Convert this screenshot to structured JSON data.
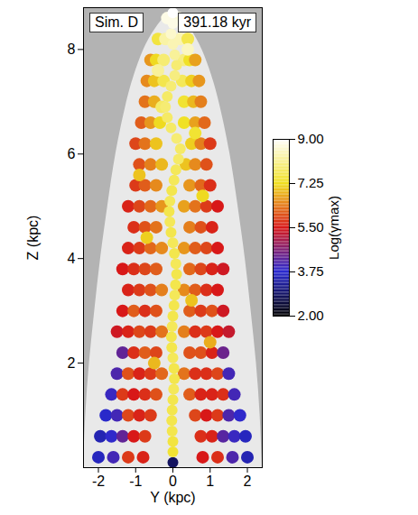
{
  "chart_data": {
    "type": "scatter",
    "annotations": [
      "Sim. D",
      "391.18 kyr"
    ],
    "x_label": "Y (kpc)",
    "y_label": "Z (kpc)",
    "xlim": [
      -2.4,
      2.4
    ],
    "xticks": [
      -2,
      -1,
      0,
      1,
      2
    ],
    "ylim": [
      0,
      8.8
    ],
    "yticks": [
      2,
      4,
      6,
      8
    ],
    "colorbar": {
      "label": "Log(γmax)",
      "range": [
        2,
        9
      ],
      "ticks": [
        {
          "value": 2,
          "label": "2.00"
        },
        {
          "value": 3.75,
          "label": "3.75"
        },
        {
          "value": 5.5,
          "label": "5.50"
        },
        {
          "value": 7.25,
          "label": "7.25"
        },
        {
          "value": 9,
          "label": "9.00"
        }
      ]
    },
    "envelope": {
      "z": [
        0,
        1,
        2,
        3,
        4,
        5,
        6,
        7,
        7.5,
        8,
        8.4,
        8.8
      ],
      "left": [
        -2.4,
        -2.35,
        -2.25,
        -2.1,
        -1.95,
        -1.75,
        -1.55,
        -1.25,
        -1.05,
        -0.8,
        -0.5,
        0
      ],
      "right": [
        2.4,
        2.35,
        2.25,
        2.1,
        1.95,
        1.75,
        1.55,
        1.25,
        1.05,
        0.8,
        0.5,
        0
      ]
    },
    "particles": [
      [
        -2.0,
        0.2,
        3.6
      ],
      [
        -1.6,
        0.2,
        4.0
      ],
      [
        -1.2,
        0.2,
        5.8
      ],
      [
        -0.8,
        0.2,
        5.6
      ],
      [
        0.8,
        0.2,
        5.5
      ],
      [
        1.2,
        0.2,
        5.7
      ],
      [
        1.6,
        0.2,
        4.1
      ],
      [
        2.0,
        0.2,
        3.5
      ],
      [
        -1.95,
        0.6,
        3.5
      ],
      [
        -1.65,
        0.6,
        3.8
      ],
      [
        -1.35,
        0.6,
        4.3
      ],
      [
        -1.05,
        0.6,
        5.5
      ],
      [
        -0.75,
        0.6,
        5.8
      ],
      [
        0.75,
        0.6,
        5.7
      ],
      [
        1.05,
        0.6,
        5.6
      ],
      [
        1.35,
        0.6,
        4.2
      ],
      [
        1.65,
        0.6,
        3.9
      ],
      [
        1.95,
        0.6,
        3.6
      ],
      [
        -1.8,
        1.0,
        3.7
      ],
      [
        -1.5,
        1.0,
        4.0
      ],
      [
        -1.2,
        1.0,
        5.9
      ],
      [
        -0.9,
        1.0,
        5.6
      ],
      [
        -0.6,
        1.0,
        5.8
      ],
      [
        0.6,
        1.0,
        5.9
      ],
      [
        0.9,
        1.0,
        5.5
      ],
      [
        1.2,
        1.0,
        5.8
      ],
      [
        1.5,
        1.0,
        4.1
      ],
      [
        1.8,
        1.0,
        3.8
      ],
      [
        -1.65,
        1.4,
        3.9
      ],
      [
        -1.35,
        1.4,
        5.8
      ],
      [
        -1.05,
        1.4,
        5.5
      ],
      [
        -0.75,
        1.4,
        5.7
      ],
      [
        -0.45,
        1.4,
        6.0
      ],
      [
        0.45,
        1.4,
        6.1
      ],
      [
        0.75,
        1.4,
        5.6
      ],
      [
        1.05,
        1.4,
        5.6
      ],
      [
        1.35,
        1.4,
        5.7
      ],
      [
        1.65,
        1.4,
        4.0
      ],
      [
        -1.5,
        1.8,
        4.1
      ],
      [
        -1.2,
        1.8,
        6.0
      ],
      [
        -0.9,
        1.8,
        5.6
      ],
      [
        -0.6,
        1.8,
        5.8
      ],
      [
        -0.3,
        1.8,
        6.2
      ],
      [
        0.3,
        1.8,
        6.3
      ],
      [
        0.6,
        1.8,
        5.7
      ],
      [
        0.9,
        1.8,
        5.7
      ],
      [
        1.2,
        1.8,
        5.9
      ],
      [
        1.5,
        1.8,
        4.0
      ],
      [
        -1.35,
        2.2,
        4.3
      ],
      [
        -1.05,
        2.2,
        5.7
      ],
      [
        -0.75,
        2.2,
        6.1
      ],
      [
        -0.45,
        2.2,
        5.9
      ],
      [
        0.45,
        2.2,
        6.0
      ],
      [
        0.75,
        2.2,
        6.0
      ],
      [
        1.05,
        2.2,
        5.6
      ],
      [
        1.35,
        2.2,
        4.4
      ],
      [
        -1.5,
        2.6,
        5.4
      ],
      [
        -1.2,
        2.6,
        5.6
      ],
      [
        -0.9,
        2.6,
        5.9
      ],
      [
        -0.6,
        2.6,
        5.8
      ],
      [
        -0.3,
        2.6,
        6.3
      ],
      [
        0.3,
        2.6,
        6.4
      ],
      [
        0.6,
        2.6,
        5.7
      ],
      [
        0.9,
        2.6,
        5.8
      ],
      [
        1.2,
        2.6,
        5.5
      ],
      [
        1.5,
        2.6,
        5.3
      ],
      [
        -1.35,
        3.0,
        5.5
      ],
      [
        -1.05,
        3.0,
        6.1
      ],
      [
        -0.75,
        3.0,
        5.7
      ],
      [
        -0.45,
        3.0,
        6.0
      ],
      [
        0.45,
        3.0,
        6.1
      ],
      [
        0.75,
        3.0,
        5.8
      ],
      [
        1.05,
        3.0,
        6.0
      ],
      [
        1.35,
        3.0,
        5.4
      ],
      [
        -1.2,
        3.4,
        5.6
      ],
      [
        -0.9,
        3.4,
        5.8
      ],
      [
        -0.6,
        3.4,
        6.0
      ],
      [
        -0.3,
        3.4,
        6.4
      ],
      [
        0.3,
        3.4,
        6.5
      ],
      [
        0.6,
        3.4,
        6.1
      ],
      [
        0.9,
        3.4,
        5.7
      ],
      [
        1.2,
        3.4,
        5.5
      ],
      [
        -1.35,
        3.8,
        5.5
      ],
      [
        -1.05,
        3.8,
        5.7
      ],
      [
        -0.75,
        3.8,
        5.9
      ],
      [
        -0.45,
        3.8,
        6.1
      ],
      [
        0.45,
        3.8,
        6.2
      ],
      [
        0.75,
        3.8,
        5.9
      ],
      [
        1.05,
        3.8,
        5.6
      ],
      [
        1.35,
        3.8,
        5.4
      ],
      [
        -1.2,
        4.2,
        5.6
      ],
      [
        -0.9,
        4.2,
        5.8
      ],
      [
        -0.6,
        4.2,
        6.2
      ],
      [
        -0.3,
        4.2,
        6.5
      ],
      [
        0.3,
        4.2,
        6.6
      ],
      [
        0.6,
        4.2,
        6.1
      ],
      [
        0.9,
        4.2,
        5.9
      ],
      [
        1.2,
        4.2,
        5.5
      ],
      [
        -1.05,
        4.6,
        5.7
      ],
      [
        -0.75,
        4.6,
        6.0
      ],
      [
        -0.45,
        4.6,
        6.3
      ],
      [
        0.45,
        4.6,
        6.4
      ],
      [
        0.75,
        4.6,
        6.0
      ],
      [
        1.05,
        4.6,
        5.6
      ],
      [
        -1.2,
        5.0,
        5.6
      ],
      [
        -0.9,
        5.0,
        5.9
      ],
      [
        -0.6,
        5.0,
        6.2
      ],
      [
        -0.3,
        5.0,
        6.6
      ],
      [
        0.3,
        5.0,
        6.7
      ],
      [
        0.6,
        5.0,
        6.3
      ],
      [
        0.9,
        5.0,
        5.8
      ],
      [
        1.2,
        5.0,
        5.5
      ],
      [
        -1.0,
        5.4,
        5.8
      ],
      [
        -0.75,
        5.4,
        6.1
      ],
      [
        -0.45,
        5.4,
        6.5
      ],
      [
        0.45,
        5.4,
        6.6
      ],
      [
        0.75,
        5.4,
        6.2
      ],
      [
        1.0,
        5.4,
        5.7
      ],
      [
        -0.9,
        5.8,
        6.0
      ],
      [
        -0.6,
        5.8,
        6.4
      ],
      [
        -0.3,
        5.8,
        6.9
      ],
      [
        0.35,
        5.8,
        7.0
      ],
      [
        0.6,
        5.8,
        6.5
      ],
      [
        0.9,
        5.8,
        6.0
      ],
      [
        -1.0,
        6.2,
        5.9
      ],
      [
        -0.75,
        6.2,
        6.3
      ],
      [
        -0.45,
        6.2,
        7.0
      ],
      [
        0.5,
        6.2,
        7.1
      ],
      [
        0.75,
        6.2,
        6.4
      ],
      [
        1.0,
        6.2,
        5.8
      ],
      [
        -0.85,
        6.6,
        6.1
      ],
      [
        -0.6,
        6.6,
        6.6
      ],
      [
        -0.35,
        6.6,
        7.2
      ],
      [
        0.3,
        6.6,
        7.3
      ],
      [
        0.6,
        6.6,
        6.7
      ],
      [
        0.85,
        6.6,
        6.2
      ],
      [
        -0.75,
        7.0,
        6.3
      ],
      [
        -0.5,
        7.0,
        6.8
      ],
      [
        0.3,
        7.0,
        7.4
      ],
      [
        0.55,
        7.0,
        6.9
      ],
      [
        0.75,
        7.0,
        6.4
      ],
      [
        -0.7,
        7.4,
        6.5
      ],
      [
        -0.5,
        7.4,
        7.0
      ],
      [
        -0.25,
        7.4,
        7.6
      ],
      [
        0.25,
        7.4,
        7.7
      ],
      [
        0.5,
        7.4,
        7.1
      ],
      [
        0.7,
        7.4,
        6.6
      ],
      [
        -0.6,
        7.8,
        6.6
      ],
      [
        -0.45,
        7.8,
        7.2
      ],
      [
        -0.25,
        7.8,
        7.9
      ],
      [
        0.3,
        7.8,
        8.0
      ],
      [
        0.45,
        7.8,
        7.3
      ],
      [
        0.6,
        7.8,
        6.7
      ],
      [
        -0.4,
        8.2,
        7.5
      ],
      [
        -0.2,
        8.2,
        8.3
      ],
      [
        0.2,
        8.2,
        8.4
      ],
      [
        0.4,
        8.2,
        7.6
      ],
      [
        -0.15,
        8.6,
        8.8
      ],
      [
        0.15,
        8.6,
        8.7
      ],
      [
        0.5,
        3.2,
        7.0
      ],
      [
        -0.7,
        4.4,
        7.1
      ],
      [
        0.8,
        5.2,
        7.2
      ],
      [
        -0.5,
        2.0,
        6.9
      ],
      [
        1.0,
        2.4,
        6.8
      ],
      [
        -0.9,
        5.6,
        7.0
      ],
      [
        0.6,
        6.4,
        7.4
      ],
      [
        -0.4,
        7.6,
        8.2
      ],
      [
        0.4,
        8.0,
        8.5
      ],
      [
        -0.3,
        6.9,
        7.8
      ]
    ],
    "jet": [
      [
        0,
        0.1,
        2.8
      ],
      [
        0,
        0.3,
        7.4
      ],
      [
        0,
        0.5,
        7.5
      ],
      [
        -0.02,
        0.7,
        7.6
      ],
      [
        -0.03,
        0.9,
        7.6
      ],
      [
        -0.02,
        1.1,
        7.6
      ],
      [
        0,
        1.3,
        7.6
      ],
      [
        0.02,
        1.5,
        7.7
      ],
      [
        0.04,
        1.7,
        7.6
      ],
      [
        0.03,
        1.9,
        7.6
      ],
      [
        0,
        2.1,
        7.7
      ],
      [
        -0.03,
        2.3,
        7.6
      ],
      [
        -0.04,
        2.5,
        7.6
      ],
      [
        -0.02,
        2.7,
        7.7
      ],
      [
        0,
        2.9,
        7.6
      ],
      [
        0.03,
        3.1,
        7.6
      ],
      [
        0.05,
        3.3,
        7.7
      ],
      [
        0.07,
        3.5,
        7.6
      ],
      [
        0.1,
        3.7,
        7.6
      ],
      [
        0.08,
        3.9,
        7.7
      ],
      [
        0.04,
        4.1,
        7.6
      ],
      [
        0,
        4.3,
        7.7
      ],
      [
        -0.05,
        4.5,
        7.6
      ],
      [
        -0.08,
        4.7,
        7.7
      ],
      [
        -0.1,
        4.9,
        7.6
      ],
      [
        -0.08,
        5.1,
        7.7
      ],
      [
        -0.03,
        5.3,
        7.6
      ],
      [
        0.03,
        5.5,
        7.7
      ],
      [
        0.08,
        5.7,
        7.7
      ],
      [
        0.15,
        5.9,
        7.8
      ],
      [
        0.2,
        6.1,
        7.8
      ],
      [
        0.1,
        6.3,
        7.9
      ],
      [
        -0.05,
        6.5,
        7.8
      ],
      [
        -0.15,
        6.7,
        7.8
      ],
      [
        -0.2,
        6.9,
        7.9
      ],
      [
        -0.15,
        7.1,
        7.8
      ],
      [
        -0.05,
        7.3,
        7.9
      ],
      [
        0.05,
        7.5,
        8.0
      ],
      [
        0.1,
        7.7,
        7.9
      ],
      [
        0.05,
        7.9,
        8.2
      ],
      [
        0,
        8.1,
        8.4
      ],
      [
        -0.05,
        8.3,
        8.6
      ],
      [
        0,
        8.5,
        8.8
      ],
      [
        0,
        8.7,
        9.0
      ]
    ]
  }
}
